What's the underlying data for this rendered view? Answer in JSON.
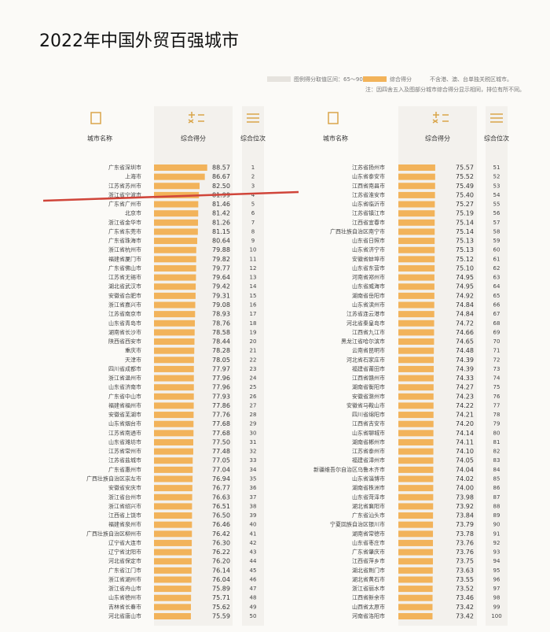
{
  "header": {
    "title": "2022年中国外贸百强城市"
  },
  "legend": {
    "range_label": "图例得分取值区间：",
    "range_min": 65,
    "range_sep": "～",
    "range_max": 90,
    "score_label": "综合得分",
    "exclusion": "不含港、澳、台单独关税区城市。",
    "note": "注：因四舍五入及图部分城市综合得分显示相同，排位有所不同。"
  },
  "columns": [
    "城市名称",
    "综合得分",
    "综合位次"
  ],
  "rows": [
    {
      "city": "广东省深圳市",
      "score": 88.57,
      "rank": 1
    },
    {
      "city": "上海市",
      "score": 86.67,
      "rank": 2
    },
    {
      "city": "江苏省苏州市",
      "score": 82.5,
      "score_label": "82.50",
      "rank": 3
    },
    {
      "city": "浙江省宁波市",
      "score": 81.99,
      "rank": 4
    },
    {
      "city": "广东省广州市",
      "score": 81.46,
      "rank": 5
    },
    {
      "city": "北京市",
      "score": 81.42,
      "rank": 6
    },
    {
      "city": "浙江省金华市",
      "score": 81.26,
      "rank": 7
    },
    {
      "city": "广东省东莞市",
      "score": 81.15,
      "rank": 8
    },
    {
      "city": "广东省珠海市",
      "score": 80.64,
      "rank": 9
    },
    {
      "city": "浙江省杭州市",
      "score": 79.88,
      "rank": 10
    },
    {
      "city": "福建省厦门市",
      "score": 79.82,
      "rank": 11
    },
    {
      "city": "广东省佛山市",
      "score": 79.77,
      "rank": 12
    },
    {
      "city": "江苏省无锡市",
      "score": 79.64,
      "rank": 13
    },
    {
      "city": "湖北省武汉市",
      "score": 79.42,
      "rank": 14
    },
    {
      "city": "安徽省合肥市",
      "score": 79.31,
      "rank": 15
    },
    {
      "city": "浙江省嘉兴市",
      "score": 79.08,
      "rank": 16
    },
    {
      "city": "江苏省南京市",
      "score": 78.93,
      "rank": 17
    },
    {
      "city": "山东省青岛市",
      "score": 78.76,
      "rank": 18
    },
    {
      "city": "湖南省长沙市",
      "score": 78.58,
      "rank": 19
    },
    {
      "city": "陕西省西安市",
      "score": 78.44,
      "rank": 20
    },
    {
      "city": "重庆市",
      "score": 78.28,
      "rank": 21
    },
    {
      "city": "天津市",
      "score": 78.05,
      "rank": 22
    },
    {
      "city": "四川省成都市",
      "score": 77.97,
      "rank": 23
    },
    {
      "city": "浙江省温州市",
      "score": 77.96,
      "rank": 24
    },
    {
      "city": "山东省济南市",
      "score": 77.96,
      "rank": 25
    },
    {
      "city": "广东省中山市",
      "score": 77.93,
      "rank": 26
    },
    {
      "city": "福建省福州市",
      "score": 77.86,
      "rank": 27
    },
    {
      "city": "安徽省芜湖市",
      "score": 77.76,
      "rank": 28
    },
    {
      "city": "山东省烟台市",
      "score": 77.68,
      "rank": 29
    },
    {
      "city": "江苏省南通市",
      "score": 77.68,
      "rank": 30
    },
    {
      "city": "山东省潍坊市",
      "score": 77.5,
      "score_label": "77.50",
      "rank": 31
    },
    {
      "city": "江苏省常州市",
      "score": 77.48,
      "rank": 32
    },
    {
      "city": "江苏省盐城市",
      "score": 77.05,
      "rank": 33
    },
    {
      "city": "广东省惠州市",
      "score": 77.04,
      "rank": 34
    },
    {
      "city": "广西壮族自治区崇左市",
      "score": 76.94,
      "rank": 35
    },
    {
      "city": "安徽省安庆市",
      "score": 76.77,
      "rank": 36
    },
    {
      "city": "浙江省台州市",
      "score": 76.63,
      "rank": 37
    },
    {
      "city": "浙江省绍兴市",
      "score": 76.51,
      "rank": 38
    },
    {
      "city": "江西省上饶市",
      "score": 76.5,
      "score_label": "76.50",
      "rank": 39
    },
    {
      "city": "福建省泉州市",
      "score": 76.46,
      "rank": 40
    },
    {
      "city": "广西壮族自治区柳州市",
      "score": 76.42,
      "rank": 41
    },
    {
      "city": "辽宁省大连市",
      "score": 76.3,
      "score_label": "76.30",
      "rank": 42
    },
    {
      "city": "辽宁省沈阳市",
      "score": 76.22,
      "rank": 43
    },
    {
      "city": "河北省保定市",
      "score": 76.2,
      "score_label": "76.20",
      "rank": 44
    },
    {
      "city": "广东省江门市",
      "score": 76.14,
      "rank": 45
    },
    {
      "city": "浙江省湖州市",
      "score": 76.04,
      "rank": 46
    },
    {
      "city": "浙江省舟山市",
      "score": 75.89,
      "rank": 47
    },
    {
      "city": "山东省德州市",
      "score": 75.71,
      "rank": 48
    },
    {
      "city": "吉林省长春市",
      "score": 75.62,
      "rank": 49
    },
    {
      "city": "河北省唐山市",
      "score": 75.59,
      "rank": 50
    },
    {
      "city": "江苏省扬州市",
      "score": 75.57,
      "rank": 51
    },
    {
      "city": "山东省泰安市",
      "score": 75.52,
      "rank": 52
    },
    {
      "city": "江西省南昌市",
      "score": 75.49,
      "rank": 53
    },
    {
      "city": "江苏省淮安市",
      "score": 75.4,
      "score_label": "75.40",
      "rank": 54
    },
    {
      "city": "山东省临沂市",
      "score": 75.27,
      "rank": 55
    },
    {
      "city": "江苏省镇江市",
      "score": 75.19,
      "rank": 56
    },
    {
      "city": "江西省宜春市",
      "score": 75.14,
      "rank": 57
    },
    {
      "city": "广西壮族自治区南宁市",
      "score": 75.14,
      "rank": 58
    },
    {
      "city": "山东省日照市",
      "score": 75.13,
      "rank": 59
    },
    {
      "city": "山东省济宁市",
      "score": 75.13,
      "rank": 60
    },
    {
      "city": "安徽省蚌埠市",
      "score": 75.12,
      "rank": 61
    },
    {
      "city": "山东省东营市",
      "score": 75.1,
      "score_label": "75.10",
      "rank": 62
    },
    {
      "city": "河南省郑州市",
      "score": 74.95,
      "rank": 63
    },
    {
      "city": "山东省威海市",
      "score": 74.95,
      "rank": 64
    },
    {
      "city": "湖南省岳阳市",
      "score": 74.92,
      "rank": 65
    },
    {
      "city": "山东省滨州市",
      "score": 74.84,
      "rank": 66
    },
    {
      "city": "江苏省连云港市",
      "score": 74.84,
      "rank": 67
    },
    {
      "city": "河北省秦皇岛市",
      "score": 74.72,
      "rank": 68
    },
    {
      "city": "江西省九江市",
      "score": 74.66,
      "rank": 69
    },
    {
      "city": "黑龙江省哈尔滨市",
      "score": 74.65,
      "rank": 70
    },
    {
      "city": "云南省昆明市",
      "score": 74.48,
      "rank": 71
    },
    {
      "city": "河北省石家庄市",
      "score": 74.39,
      "rank": 72
    },
    {
      "city": "福建省莆田市",
      "score": 74.39,
      "rank": 73
    },
    {
      "city": "江西省赣州市",
      "score": 74.33,
      "rank": 74
    },
    {
      "city": "湖南省衡阳市",
      "score": 74.27,
      "rank": 75
    },
    {
      "city": "安徽省滁州市",
      "score": 74.23,
      "rank": 76
    },
    {
      "city": "安徽省马鞍山市",
      "score": 74.22,
      "rank": 77
    },
    {
      "city": "四川省绵阳市",
      "score": 74.21,
      "rank": 78
    },
    {
      "city": "江西省吉安市",
      "score": 74.2,
      "score_label": "74.20",
      "rank": 79
    },
    {
      "city": "山东省聊城市",
      "score": 74.14,
      "rank": 80
    },
    {
      "city": "湖南省郴州市",
      "score": 74.11,
      "rank": 81
    },
    {
      "city": "江苏省泰州市",
      "score": 74.1,
      "score_label": "74.10",
      "rank": 82
    },
    {
      "city": "福建省漳州市",
      "score": 74.05,
      "rank": 83
    },
    {
      "city": "新疆维吾尔自治区乌鲁木齐市",
      "score": 74.04,
      "rank": 84
    },
    {
      "city": "山东省淄博市",
      "score": 74.02,
      "rank": 85
    },
    {
      "city": "湖南省株洲市",
      "score": 74.0,
      "score_label": "74.00",
      "rank": 86
    },
    {
      "city": "山东省菏泽市",
      "score": 73.98,
      "rank": 87
    },
    {
      "city": "湖北省襄阳市",
      "score": 73.92,
      "rank": 88
    },
    {
      "city": "广东省汕头市",
      "score": 73.84,
      "rank": 89
    },
    {
      "city": "宁夏回族自治区银川市",
      "score": 73.79,
      "rank": 90
    },
    {
      "city": "湖南省常德市",
      "score": 73.78,
      "rank": 91
    },
    {
      "city": "山东省枣庄市",
      "score": 73.76,
      "rank": 92
    },
    {
      "city": "广东省肇庆市",
      "score": 73.76,
      "rank": 93
    },
    {
      "city": "江西省萍乡市",
      "score": 73.75,
      "rank": 94
    },
    {
      "city": "湖北省荆门市",
      "score": 73.63,
      "rank": 95
    },
    {
      "city": "湖北省黄石市",
      "score": 73.55,
      "rank": 96
    },
    {
      "city": "浙江省丽水市",
      "score": 73.52,
      "rank": 97
    },
    {
      "city": "江西省新余市",
      "score": 73.46,
      "rank": 98
    },
    {
      "city": "山西省太原市",
      "score": 73.42,
      "rank": 99
    },
    {
      "city": "河南省洛阳市",
      "score": 73.42,
      "rank": 100
    }
  ]
}
